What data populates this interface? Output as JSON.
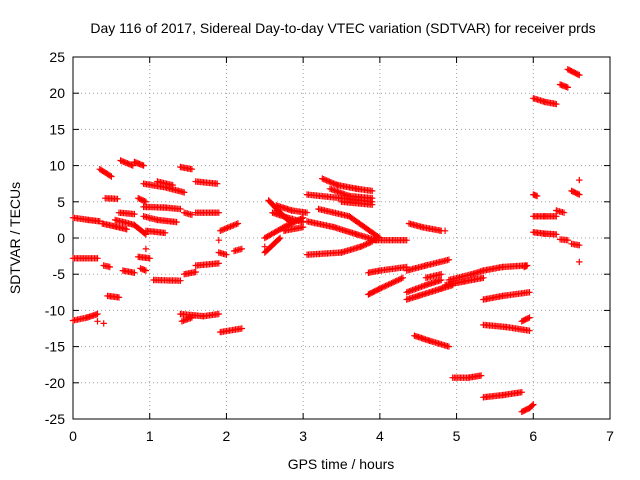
{
  "chart_data": {
    "type": "scatter",
    "title": "Day 116 of 2017, Sidereal Day-to-day VTEC variation (SDTVAR) for receiver prds",
    "xlabel": "GPS time / hours",
    "ylabel": "SDTVAR / TECUs",
    "xlim": [
      0,
      7
    ],
    "ylim": [
      -25,
      25
    ],
    "x_ticks": [
      "0",
      "1",
      "2",
      "3",
      "4",
      "5",
      "6",
      "7"
    ],
    "y_ticks": [
      "-25",
      "-20",
      "-15",
      "-10",
      "-5",
      "0",
      "5",
      "10",
      "15",
      "20",
      "25"
    ],
    "grid": true,
    "legend": "none",
    "marker": "plus",
    "color": "#ff0000",
    "segments": [
      [
        [
          0.0,
          -11.4
        ],
        [
          0.18,
          -11.0
        ],
        [
          0.32,
          -10.5
        ]
      ],
      [
        [
          0.0,
          2.8
        ],
        [
          0.2,
          2.5
        ],
        [
          0.35,
          2.3
        ]
      ],
      [
        [
          0.0,
          -2.8
        ],
        [
          0.32,
          -2.8
        ]
      ],
      [
        [
          0.35,
          9.5
        ],
        [
          0.5,
          8.5
        ]
      ],
      [
        [
          0.38,
          2.0
        ],
        [
          0.55,
          1.6
        ],
        [
          0.7,
          1.2
        ]
      ],
      [
        [
          0.4,
          -3.8
        ],
        [
          0.48,
          -4.0
        ]
      ],
      [
        [
          0.42,
          5.5
        ],
        [
          0.58,
          5.4
        ]
      ],
      [
        [
          0.45,
          -8.0
        ],
        [
          0.6,
          -8.2
        ]
      ],
      [
        [
          0.55,
          2.5
        ],
        [
          0.8,
          1.8
        ],
        [
          0.95,
          0.5
        ]
      ],
      [
        [
          0.6,
          3.5
        ],
        [
          0.8,
          3.3
        ]
      ],
      [
        [
          0.62,
          10.7
        ],
        [
          0.78,
          10.0
        ]
      ],
      [
        [
          0.65,
          -4.5
        ],
        [
          0.8,
          -4.8
        ]
      ],
      [
        [
          0.8,
          10.5
        ],
        [
          0.92,
          10.0
        ]
      ],
      [
        [
          0.85,
          5.5
        ],
        [
          0.95,
          5.0
        ]
      ],
      [
        [
          0.85,
          -2.6
        ],
        [
          1.0,
          -2.8
        ]
      ],
      [
        [
          0.88,
          -4.2
        ],
        [
          0.95,
          -4.5
        ]
      ],
      [
        [
          0.92,
          7.5
        ],
        [
          1.2,
          7.0
        ],
        [
          1.45,
          6.3
        ]
      ],
      [
        [
          0.92,
          4.3
        ],
        [
          1.2,
          4.2
        ],
        [
          1.4,
          4.0
        ]
      ],
      [
        [
          0.92,
          3.0
        ],
        [
          1.1,
          2.5
        ],
        [
          1.35,
          2.2
        ]
      ],
      [
        [
          0.95,
          1.0
        ],
        [
          1.2,
          0.7
        ]
      ],
      [
        [
          1.05,
          -5.8
        ],
        [
          1.4,
          -5.9
        ]
      ],
      [
        [
          1.1,
          7.8
        ],
        [
          1.3,
          7.3
        ]
      ],
      [
        [
          1.4,
          9.8
        ],
        [
          1.55,
          9.5
        ]
      ],
      [
        [
          1.4,
          -10.5
        ],
        [
          1.7,
          -10.8
        ],
        [
          1.9,
          -10.5
        ]
      ],
      [
        [
          1.42,
          -11.5
        ],
        [
          1.55,
          -11.0
        ]
      ],
      [
        [
          1.45,
          3.5
        ],
        [
          1.55,
          3.2
        ]
      ],
      [
        [
          1.45,
          -5.0
        ],
        [
          1.6,
          -4.7
        ]
      ],
      [
        [
          1.6,
          7.8
        ],
        [
          1.88,
          7.5
        ]
      ],
      [
        [
          1.6,
          3.5
        ],
        [
          1.9,
          3.5
        ]
      ],
      [
        [
          1.6,
          -3.8
        ],
        [
          1.9,
          -3.5
        ]
      ],
      [
        [
          1.9,
          -2.0
        ],
        [
          2.0,
          -2.3
        ]
      ],
      [
        [
          1.92,
          1.0
        ],
        [
          2.15,
          2.0
        ]
      ],
      [
        [
          1.92,
          -13.0
        ],
        [
          2.2,
          -12.5
        ]
      ],
      [
        [
          2.1,
          -1.8
        ],
        [
          2.2,
          -1.5
        ]
      ],
      [
        [
          2.5,
          -2.0
        ],
        [
          2.6,
          -1.0
        ],
        [
          2.7,
          0.0
        ]
      ],
      [
        [
          2.5,
          0.0
        ],
        [
          2.75,
          1.5
        ],
        [
          3.0,
          2.8
        ]
      ],
      [
        [
          2.55,
          5.2
        ],
        [
          2.7,
          3.5
        ],
        [
          2.85,
          2.0
        ]
      ],
      [
        [
          2.6,
          3.5
        ],
        [
          2.8,
          2.8
        ],
        [
          3.0,
          2.2
        ]
      ],
      [
        [
          2.65,
          4.5
        ],
        [
          2.85,
          3.8
        ],
        [
          3.05,
          3.5
        ]
      ],
      [
        [
          2.75,
          1.0
        ],
        [
          3.0,
          1.5
        ]
      ],
      [
        [
          3.05,
          -2.3
        ],
        [
          3.5,
          -2.0
        ],
        [
          3.75,
          -1.2
        ],
        [
          3.9,
          -0.5
        ]
      ],
      [
        [
          3.05,
          2.3
        ],
        [
          3.4,
          1.5
        ],
        [
          3.7,
          0.5
        ],
        [
          3.95,
          -0.3
        ]
      ],
      [
        [
          3.05,
          6.0
        ],
        [
          3.5,
          5.5
        ],
        [
          3.9,
          5.0
        ]
      ],
      [
        [
          3.2,
          4.0
        ],
        [
          3.6,
          3.0
        ],
        [
          4.0,
          0.0
        ]
      ],
      [
        [
          3.25,
          8.2
        ],
        [
          3.45,
          7.3
        ],
        [
          3.7,
          6.8
        ],
        [
          3.9,
          6.5
        ]
      ],
      [
        [
          3.35,
          6.8
        ],
        [
          3.6,
          5.8
        ],
        [
          3.9,
          5.5
        ]
      ],
      [
        [
          3.5,
          5.0
        ],
        [
          3.9,
          4.6
        ]
      ],
      [
        [
          3.85,
          -4.8
        ],
        [
          4.0,
          -4.5
        ],
        [
          4.35,
          -4.0
        ]
      ],
      [
        [
          3.85,
          -7.8
        ],
        [
          4.0,
          -7.0
        ],
        [
          4.3,
          -5.5
        ]
      ],
      [
        [
          3.92,
          -0.3
        ],
        [
          4.35,
          -0.3
        ]
      ],
      [
        [
          4.35,
          -8.5
        ],
        [
          4.5,
          -8.0
        ],
        [
          4.8,
          -7.0
        ],
        [
          4.95,
          -6.5
        ]
      ],
      [
        [
          4.35,
          -7.5
        ],
        [
          4.6,
          -6.5
        ],
        [
          4.8,
          -5.8
        ]
      ],
      [
        [
          4.35,
          -4.5
        ],
        [
          4.6,
          -3.8
        ],
        [
          4.9,
          -3.0
        ]
      ],
      [
        [
          4.38,
          2.0
        ],
        [
          4.55,
          1.5
        ],
        [
          4.8,
          1.0
        ]
      ],
      [
        [
          4.45,
          -13.5
        ],
        [
          4.65,
          -14.2
        ],
        [
          4.9,
          -15.0
        ]
      ],
      [
        [
          4.6,
          -5.5
        ],
        [
          4.8,
          -5.0
        ]
      ],
      [
        [
          4.85,
          -6.5
        ],
        [
          5.1,
          -6.0
        ],
        [
          5.35,
          -5.5
        ]
      ],
      [
        [
          4.9,
          -5.8
        ],
        [
          5.2,
          -5.0
        ],
        [
          5.35,
          -4.5
        ]
      ],
      [
        [
          4.95,
          -19.3
        ],
        [
          5.15,
          -19.3
        ],
        [
          5.32,
          -19.0
        ]
      ],
      [
        [
          5.35,
          -4.5
        ],
        [
          5.6,
          -4.0
        ],
        [
          5.9,
          -3.8
        ]
      ],
      [
        [
          5.35,
          -8.5
        ],
        [
          5.6,
          -8.0
        ],
        [
          5.95,
          -7.5
        ]
      ],
      [
        [
          5.35,
          -12.0
        ],
        [
          5.65,
          -12.3
        ],
        [
          5.95,
          -12.8
        ]
      ],
      [
        [
          5.35,
          -22.0
        ],
        [
          5.6,
          -21.7
        ],
        [
          5.85,
          -21.3
        ]
      ],
      [
        [
          5.85,
          -11.5
        ],
        [
          5.95,
          -11.0
        ]
      ],
      [
        [
          5.85,
          -24.0
        ],
        [
          5.95,
          -23.5
        ],
        [
          6.0,
          -23.0
        ]
      ],
      [
        [
          5.88,
          -4.0
        ],
        [
          5.92,
          -3.8
        ]
      ],
      [
        [
          6.0,
          19.3
        ],
        [
          6.15,
          18.8
        ],
        [
          6.3,
          18.5
        ]
      ],
      [
        [
          6.0,
          6.0
        ],
        [
          6.05,
          5.8
        ]
      ],
      [
        [
          6.0,
          3.0
        ],
        [
          6.15,
          3.0
        ],
        [
          6.3,
          3.0
        ]
      ],
      [
        [
          6.0,
          0.8
        ],
        [
          6.15,
          0.6
        ],
        [
          6.3,
          0.5
        ]
      ],
      [
        [
          6.3,
          3.8
        ],
        [
          6.4,
          3.5
        ]
      ],
      [
        [
          6.35,
          -0.2
        ],
        [
          6.45,
          -0.3
        ]
      ],
      [
        [
          6.35,
          21.2
        ],
        [
          6.45,
          20.8
        ]
      ],
      [
        [
          6.45,
          23.3
        ],
        [
          6.6,
          22.5
        ]
      ],
      [
        [
          6.5,
          6.5
        ],
        [
          6.6,
          6.0
        ]
      ],
      [
        [
          6.5,
          -0.8
        ],
        [
          6.6,
          -1.0
        ]
      ]
    ],
    "points": [
      [
        0.32,
        -11.5
      ],
      [
        1.9,
        -0.3
      ],
      [
        6.6,
        8.0
      ],
      [
        6.6,
        -3.3
      ],
      [
        2.5,
        -1.2
      ],
      [
        0.95,
        -1.5
      ],
      [
        0.4,
        -11.8
      ],
      [
        4.85,
        1.0
      ]
    ]
  }
}
